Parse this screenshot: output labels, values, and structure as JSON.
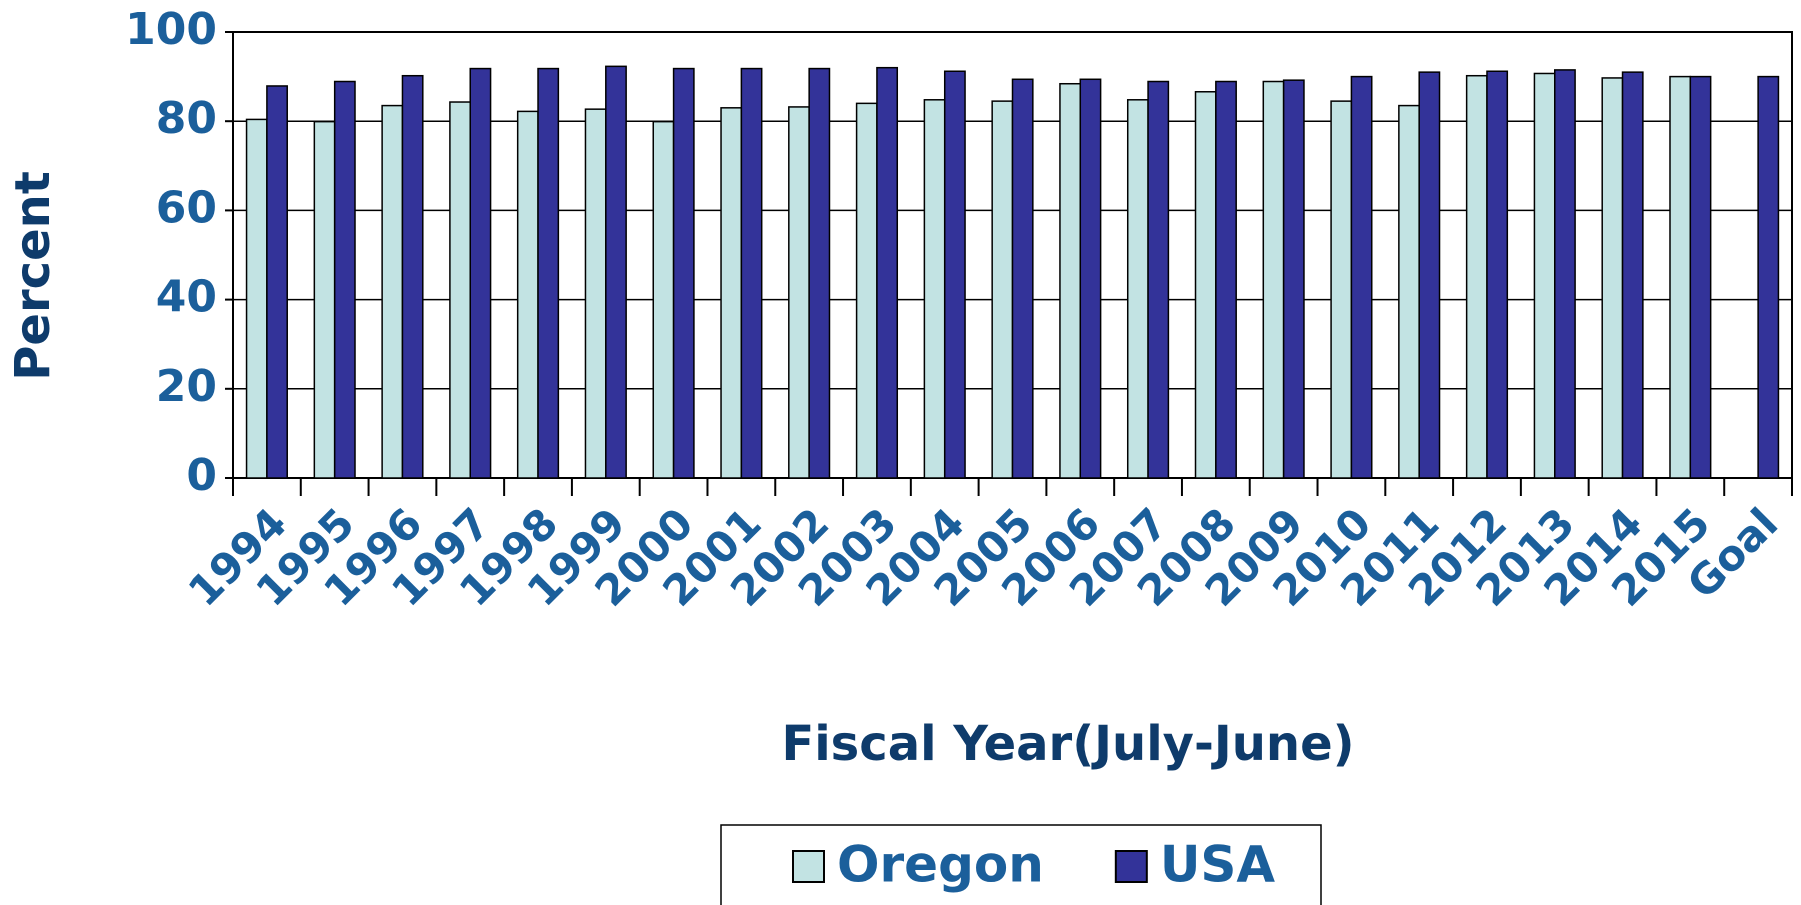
{
  "chart_data": {
    "type": "bar",
    "x_label": "Fiscal Year(July-June)",
    "y_label": "Percent",
    "categories": [
      "1994",
      "1995",
      "1996",
      "1997",
      "1998",
      "1999",
      "2000",
      "2001",
      "2002",
      "2003",
      "2004",
      "2005",
      "2006",
      "2007",
      "2008",
      "2009",
      "2010",
      "2011",
      "2012",
      "2013",
      "2014",
      "2015",
      "Goal"
    ],
    "series": [
      {
        "name": "Oregon",
        "color": "#c2e3e3",
        "values": [
          80.4,
          79.9,
          83.5,
          84.3,
          82.2,
          82.7,
          79.9,
          83,
          83.2,
          84,
          84.8,
          84.5,
          88.4,
          84.8,
          86.6,
          88.9,
          84.5,
          83.5,
          90.2,
          90.7,
          89.7,
          90,
          null
        ]
      },
      {
        "name": "USA",
        "color": "#333399",
        "values": [
          87.9,
          88.9,
          90.2,
          91.8,
          91.8,
          92.3,
          91.8,
          91.8,
          91.8,
          92,
          91.2,
          89.4,
          89.4,
          88.9,
          88.9,
          89.2,
          90,
          91,
          91.2,
          91.5,
          91,
          90,
          90
        ]
      }
    ],
    "ylim": [
      0,
      100
    ],
    "yticks": [
      0,
      20,
      40,
      60,
      80,
      100
    ],
    "grid": true,
    "legend": "bottom"
  }
}
